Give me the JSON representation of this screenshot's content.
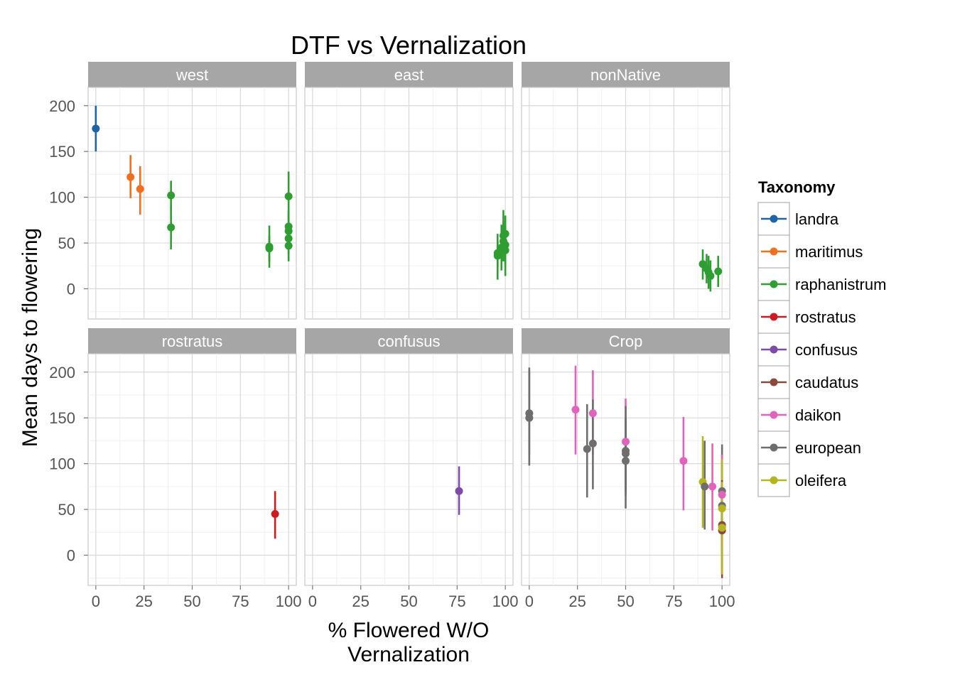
{
  "chart_data": {
    "type": "scatter",
    "title": "DTF vs Vernalization",
    "xlabel": [
      "% Flowered W/O",
      "Vernalization"
    ],
    "ylabel": "Mean days to flowering",
    "xlim": [
      -4,
      104
    ],
    "ylim": [
      -33,
      220
    ],
    "x_ticks": [
      0,
      25,
      50,
      75,
      100
    ],
    "y_ticks": [
      0,
      50,
      100,
      150,
      200
    ],
    "grid": true,
    "legend": {
      "title": "Taxonomy",
      "placement": "right",
      "entries": [
        "landra",
        "maritimus",
        "raphanistrum",
        "rostratus",
        "confusus",
        "caudatus",
        "daikon",
        "european",
        "oleifera"
      ]
    },
    "colors": {
      "landra": "#1F64A8",
      "maritimus": "#F36F1E",
      "raphanistrum": "#2E9E32",
      "rostratus": "#CC1C20",
      "confusus": "#7F4BAA",
      "caudatus": "#8C4A3C",
      "daikon": "#E063BC",
      "european": "#6E6E6E",
      "oleifera": "#B5B520"
    },
    "panels": [
      {
        "name": "west",
        "points": [
          {
            "taxon": "landra",
            "x": 0,
            "y": 175,
            "ymin": 150,
            "ymax": 200
          },
          {
            "taxon": "maritimus",
            "x": 18,
            "y": 122,
            "ymin": 99,
            "ymax": 146
          },
          {
            "taxon": "maritimus",
            "x": 23,
            "y": 109,
            "ymin": 81,
            "ymax": 134
          },
          {
            "taxon": "raphanistrum",
            "x": 39,
            "y": 102,
            "ymin": 86,
            "ymax": 118
          },
          {
            "taxon": "raphanistrum",
            "x": 39,
            "y": 67,
            "ymin": 43,
            "ymax": 90
          },
          {
            "taxon": "raphanistrum",
            "x": 90,
            "y": 46,
            "ymin": 23,
            "ymax": 69
          },
          {
            "taxon": "raphanistrum",
            "x": 90,
            "y": 44,
            "ymin": 30,
            "ymax": 58
          },
          {
            "taxon": "raphanistrum",
            "x": 100,
            "y": 101,
            "ymin": 75,
            "ymax": 128
          },
          {
            "taxon": "raphanistrum",
            "x": 100,
            "y": 68,
            "ymin": 50,
            "ymax": 86
          },
          {
            "taxon": "raphanistrum",
            "x": 100,
            "y": 63,
            "ymin": 44,
            "ymax": 82
          },
          {
            "taxon": "raphanistrum",
            "x": 100,
            "y": 55,
            "ymin": 38,
            "ymax": 72
          },
          {
            "taxon": "raphanistrum",
            "x": 100,
            "y": 47,
            "ymin": 30,
            "ymax": 64
          }
        ]
      },
      {
        "name": "east",
        "points": [
          {
            "taxon": "raphanistrum",
            "x": 96,
            "y": 39,
            "ymin": 24,
            "ymax": 53
          },
          {
            "taxon": "raphanistrum",
            "x": 96,
            "y": 36,
            "ymin": 10,
            "ymax": 60
          },
          {
            "taxon": "raphanistrum",
            "x": 98,
            "y": 45,
            "ymin": 20,
            "ymax": 70
          },
          {
            "taxon": "raphanistrum",
            "x": 99,
            "y": 58,
            "ymin": 30,
            "ymax": 86
          },
          {
            "taxon": "raphanistrum",
            "x": 99,
            "y": 52,
            "ymin": 30,
            "ymax": 74
          },
          {
            "taxon": "raphanistrum",
            "x": 100,
            "y": 60,
            "ymin": 40,
            "ymax": 80
          },
          {
            "taxon": "raphanistrum",
            "x": 100,
            "y": 48,
            "ymin": 26,
            "ymax": 70
          },
          {
            "taxon": "raphanistrum",
            "x": 100,
            "y": 42,
            "ymin": 14,
            "ymax": 70
          }
        ]
      },
      {
        "name": "nonNative",
        "points": [
          {
            "taxon": "raphanistrum",
            "x": 90,
            "y": 27,
            "ymin": 10,
            "ymax": 43
          },
          {
            "taxon": "raphanistrum",
            "x": 92,
            "y": 22,
            "ymin": 6,
            "ymax": 38
          },
          {
            "taxon": "raphanistrum",
            "x": 93,
            "y": 18,
            "ymin": 0,
            "ymax": 36
          },
          {
            "taxon": "raphanistrum",
            "x": 94,
            "y": 14,
            "ymin": -3,
            "ymax": 31
          },
          {
            "taxon": "raphanistrum",
            "x": 98,
            "y": 19,
            "ymin": 2,
            "ymax": 36
          }
        ]
      },
      {
        "name": "rostratus",
        "points": [
          {
            "taxon": "rostratus",
            "x": 93,
            "y": 45,
            "ymin": 18,
            "ymax": 70
          }
        ]
      },
      {
        "name": "confusus",
        "points": [
          {
            "taxon": "confusus",
            "x": 76,
            "y": 70,
            "ymin": 44,
            "ymax": 97
          }
        ]
      },
      {
        "name": "Crop",
        "points": [
          {
            "taxon": "european",
            "x": 0,
            "y": 155,
            "ymin": 110,
            "ymax": 205
          },
          {
            "taxon": "european",
            "x": 0,
            "y": 150,
            "ymin": 98,
            "ymax": 200
          },
          {
            "taxon": "daikon",
            "x": 24,
            "y": 159,
            "ymin": 110,
            "ymax": 207
          },
          {
            "taxon": "european",
            "x": 30,
            "y": 116,
            "ymin": 63,
            "ymax": 165
          },
          {
            "taxon": "daikon",
            "x": 33,
            "y": 155,
            "ymin": 110,
            "ymax": 202
          },
          {
            "taxon": "european",
            "x": 33,
            "y": 122,
            "ymin": 72,
            "ymax": 170
          },
          {
            "taxon": "daikon",
            "x": 50,
            "y": 124,
            "ymin": 78,
            "ymax": 171
          },
          {
            "taxon": "european",
            "x": 50,
            "y": 114,
            "ymin": 65,
            "ymax": 163
          },
          {
            "taxon": "european",
            "x": 50,
            "y": 111,
            "ymin": 70,
            "ymax": 150
          },
          {
            "taxon": "european",
            "x": 50,
            "y": 103,
            "ymin": 51,
            "ymax": 150
          },
          {
            "taxon": "daikon",
            "x": 80,
            "y": 103,
            "ymin": 49,
            "ymax": 151
          },
          {
            "taxon": "oleifera",
            "x": 90,
            "y": 80,
            "ymin": 30,
            "ymax": 130
          },
          {
            "taxon": "european",
            "x": 91,
            "y": 75,
            "ymin": 28,
            "ymax": 125
          },
          {
            "taxon": "daikon",
            "x": 95,
            "y": 75,
            "ymin": 27,
            "ymax": 122
          },
          {
            "taxon": "european",
            "x": 100,
            "y": 70,
            "ymin": 20,
            "ymax": 121
          },
          {
            "taxon": "daikon",
            "x": 100,
            "y": 66,
            "ymin": 20,
            "ymax": 110
          },
          {
            "taxon": "european",
            "x": 100,
            "y": 54,
            "ymin": 5,
            "ymax": 103
          },
          {
            "taxon": "oleifera",
            "x": 100,
            "y": 51,
            "ymin": 0,
            "ymax": 105
          },
          {
            "taxon": "caudatus",
            "x": 100,
            "y": 33,
            "ymin": -20,
            "ymax": 82
          },
          {
            "taxon": "caudatus",
            "x": 100,
            "y": 27,
            "ymin": -25,
            "ymax": 78
          },
          {
            "taxon": "oleifera",
            "x": 100,
            "y": 30,
            "ymin": -21,
            "ymax": 80
          }
        ]
      }
    ]
  }
}
